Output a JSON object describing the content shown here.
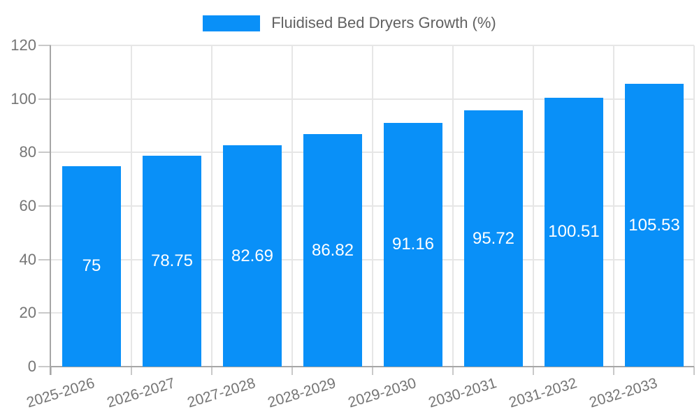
{
  "legend": {
    "label": "Fluidised Bed Dryers Growth (%)"
  },
  "colors": {
    "bar": "#0990f8",
    "axis": "#a6a6a6",
    "grid": "#e6e6e6",
    "tick": "#c9c9c9",
    "tick_label": "#757575",
    "value_label": "#ffffff",
    "legend_text": "#616161",
    "background": "#ffffff"
  },
  "chart_data": {
    "type": "bar",
    "title": "Fluidised Bed Dryers Growth (%)",
    "categories": [
      "2025-2026",
      "2026-2027",
      "2027-2028",
      "2028-2029",
      "2029-2030",
      "2030-2031",
      "2031-2032",
      "2032-2033"
    ],
    "values": [
      75,
      78.75,
      82.69,
      86.82,
      91.16,
      95.72,
      100.51,
      105.53
    ],
    "xlabel": "",
    "ylabel": "",
    "ylim": [
      0,
      120
    ],
    "yticks": [
      0,
      20,
      40,
      60,
      80,
      100,
      120
    ],
    "grid": true,
    "legend_position": "top-center",
    "value_labels": "inside-center",
    "x_tick_rotation_deg": -17
  }
}
